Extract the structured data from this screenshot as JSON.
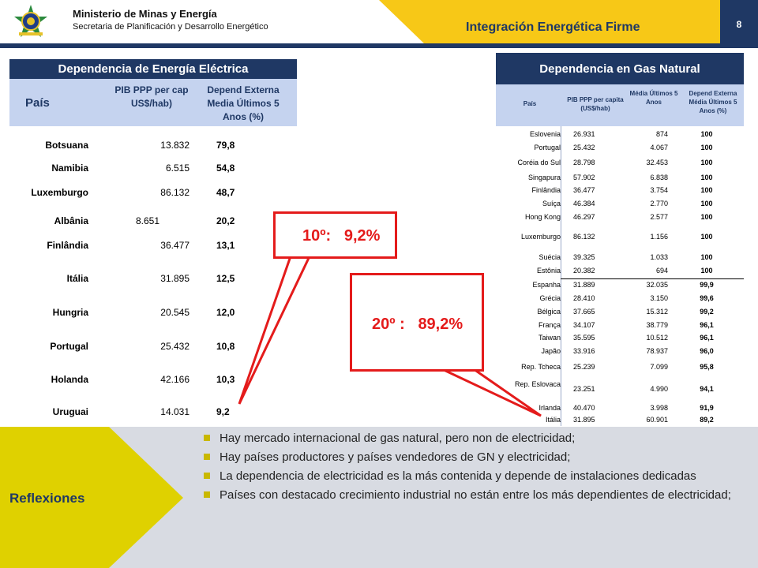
{
  "header": {
    "ministry": "Ministerio de Minas y Energía",
    "secretaria": "Secretaria de Planificación y Desarrollo Energético",
    "title": "Integración Energética Firme",
    "page_number": "8"
  },
  "colors": {
    "navy": "#1f3864",
    "yellow": "#f7c817",
    "header_blue": "#c5d3ef",
    "callout_red": "#e41b1b",
    "reflex_yellow": "#dfd100"
  },
  "left_table": {
    "title": "Dependencia de Energía Eléctrica",
    "col_country": "País",
    "col_pib": "PIB PPP per cap US$/hab)",
    "col_dep": "Depend Externa Media Últimos 5 Anos (%)",
    "rows": [
      {
        "country": "Botsuana",
        "pib": "13.832",
        "dep": "79,8"
      },
      {
        "country": "Namibia",
        "pib": "6.515",
        "dep": "54,8"
      },
      {
        "country": "Luxemburgo",
        "pib": "86.132",
        "dep": "48,7"
      },
      {
        "country": "Albânia",
        "pib": "8.651",
        "dep": "20,2"
      },
      {
        "country": "Finlândia",
        "pib": "36.477",
        "dep": "13,1"
      },
      {
        "country": "Itália",
        "pib": "31.895",
        "dep": "12,5"
      },
      {
        "country": "Hungria",
        "pib": "20.545",
        "dep": "12,0"
      },
      {
        "country": "Portugal",
        "pib": "25.432",
        "dep": "10,8"
      },
      {
        "country": "Holanda",
        "pib": "42.166",
        "dep": "10,3"
      },
      {
        "country": "Uruguai",
        "pib": "14.031",
        "dep": "9,2"
      }
    ]
  },
  "right_table": {
    "title": "Dependencia en Gas Natural",
    "col_country": "País",
    "col_pib": "PIB PPP per capita (US$/hab)",
    "col_media": "Média Últimos 5 Anos",
    "col_dep": "Depend Externa Média Últimos 5 Anos (%)",
    "rows": [
      {
        "country": "Eslovenia",
        "pib": "26.931",
        "gas": "874",
        "dep": "100"
      },
      {
        "country": "Portugal",
        "pib": "25.432",
        "gas": "4.067",
        "dep": "100"
      },
      {
        "country": "Coréia do Sul",
        "pib": "28.798",
        "gas": "32.453",
        "dep": "100"
      },
      {
        "country": "Singapura",
        "pib": "57.902",
        "gas": "6.838",
        "dep": "100"
      },
      {
        "country": "Finlândia",
        "pib": "36.477",
        "gas": "3.754",
        "dep": "100"
      },
      {
        "country": "Suíça",
        "pib": "46.384",
        "gas": "2.770",
        "dep": "100"
      },
      {
        "country": "Hong Kong",
        "pib": "46.297",
        "gas": "2.577",
        "dep": "100"
      },
      {
        "country": "Luxemburgo",
        "pib": "86.132",
        "gas": "1.156",
        "dep": "100"
      },
      {
        "country": "Suécia",
        "pib": "39.325",
        "gas": "1.033",
        "dep": "100"
      },
      {
        "country": "Estônia",
        "pib": "20.382",
        "gas": "694",
        "dep": "100"
      },
      {
        "country": "Espanha",
        "pib": "31.889",
        "gas": "32.035",
        "dep": "99,9"
      },
      {
        "country": "Grécia",
        "pib": "28.410",
        "gas": "3.150",
        "dep": "99,6"
      },
      {
        "country": "Bélgica",
        "pib": "37.665",
        "gas": "15.312",
        "dep": "99,2"
      },
      {
        "country": "França",
        "pib": "34.107",
        "gas": "38.779",
        "dep": "96,1"
      },
      {
        "country": "Taiwan",
        "pib": "35.595",
        "gas": "10.512",
        "dep": "96,1"
      },
      {
        "country": "Japão",
        "pib": "33.916",
        "gas": "78.937",
        "dep": "96,0"
      },
      {
        "country": "Rep. Tcheca",
        "pib": "25.239",
        "gas": "7.099",
        "dep": "95,8"
      },
      {
        "country": "Rep. Eslovaca",
        "pib": "23.251",
        "gas": "4.990",
        "dep": "94,1"
      },
      {
        "country": "Irlanda",
        "pib": "40.470",
        "gas": "3.998",
        "dep": "91,9"
      },
      {
        "country": "Itália",
        "pib": "31.895",
        "gas": "60.901",
        "dep": "89,2"
      }
    ]
  },
  "callouts": {
    "electric": "10º:   9,2%",
    "gas": "20º :   89,2%"
  },
  "reflexiones": {
    "label": "Reflexiones",
    "bullets": [
      "Hay mercado internacional de gas natural, pero non de electricidad;",
      "Hay países productores y países vendedores de GN y electricidad;",
      "La dependencia de electricidad es la más contenida y depende de instalaciones dedicadas",
      "Países con destacado crecimiento industrial no están entre los más dependientes de electricidad;"
    ]
  }
}
